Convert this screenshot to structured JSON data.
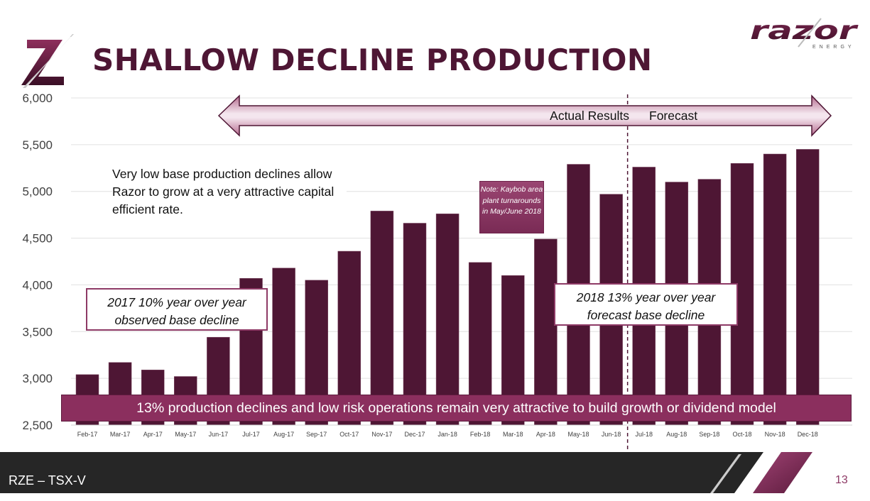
{
  "slide": {
    "title": "SHALLOW DECLINE PRODUCTION",
    "brand": {
      "name": "razor",
      "sub": "ENERGY"
    },
    "footer_label": "RZE – TSX-V",
    "page_number": "13",
    "colors": {
      "primary": "#4e1634",
      "accent": "#8b2f5e",
      "footer": "#262626"
    }
  },
  "annotations": {
    "body_text": "Very low base production declines allow Razor to grow at a very attractive capital efficient rate.",
    "box_2017_line1": "2017 10% year over year",
    "box_2017_line2": "observed base decline",
    "box_2018_line1": "2018 13% year over year",
    "box_2018_line2": "forecast base decline",
    "note": "Note: Kaybob area plant turnarounds in May/June 2018",
    "banner": "13% production declines and low risk operations remain very attractive to build growth or dividend model",
    "arrow_left_label": "Actual Results",
    "arrow_right_label": "Forecast"
  },
  "chart_data": {
    "type": "bar",
    "title": "SHALLOW DECLINE PRODUCTION",
    "xlabel": "",
    "ylabel": "",
    "ylim": [
      2500,
      6000
    ],
    "yticks": [
      2500,
      3000,
      3500,
      4000,
      4500,
      5000,
      5500,
      6000
    ],
    "ytick_labels": [
      "2,500",
      "3,000",
      "3,500",
      "4,000",
      "4,500",
      "5,000",
      "5,500",
      "6,000"
    ],
    "grid": true,
    "legend": "none",
    "categories": [
      "Feb-17",
      "Mar-17",
      "Apr-17",
      "May-17",
      "Jun-17",
      "Jul-17",
      "Aug-17",
      "Sep-17",
      "Oct-17",
      "Nov-17",
      "Dec-17",
      "Jan-18",
      "Feb-18",
      "Mar-18",
      "Apr-18",
      "May-18",
      "Jun-18",
      "Jul-18",
      "Aug-18",
      "Sep-18",
      "Oct-18",
      "Nov-18",
      "Dec-18"
    ],
    "values": [
      3040,
      3170,
      3090,
      3020,
      3440,
      4070,
      4180,
      4050,
      4360,
      4790,
      4660,
      4760,
      4240,
      4100,
      4490,
      5290,
      4970,
      5260,
      5100,
      5130,
      5300,
      5400,
      5450
    ],
    "divider_between": [
      "Jun-18",
      "Jul-18"
    ],
    "bar_color": "#4e1634"
  }
}
